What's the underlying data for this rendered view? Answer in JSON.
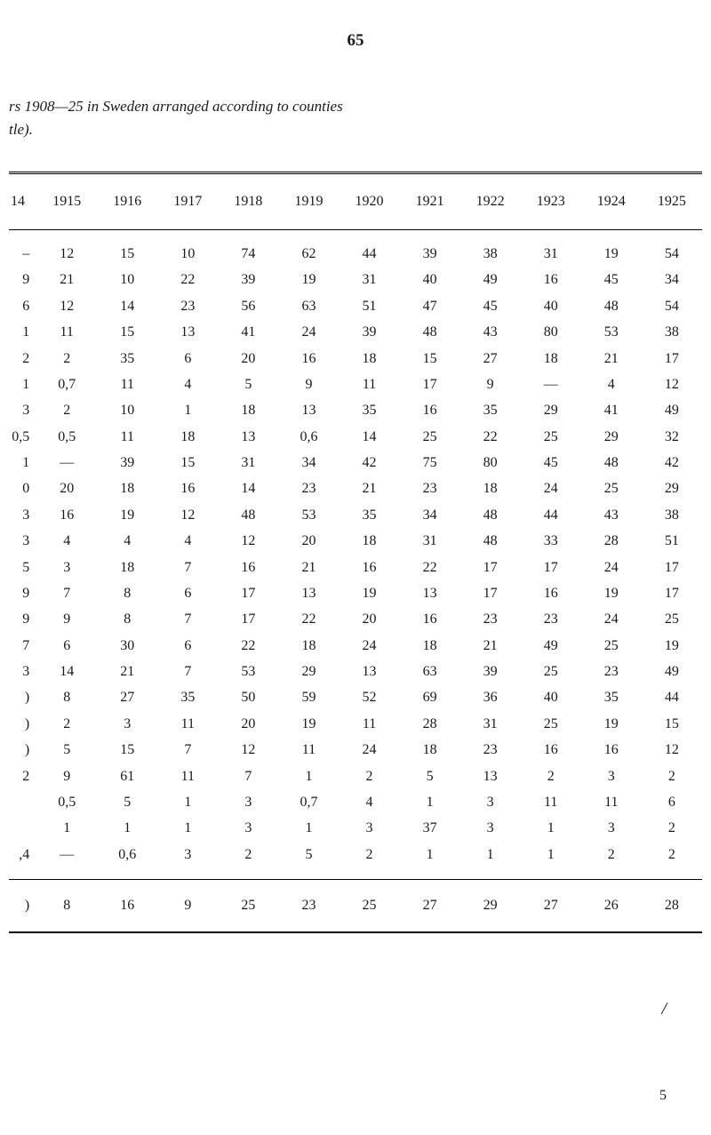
{
  "page_number": "65",
  "title": {
    "line1": "rs 1908—25 in Sweden arranged according to counties",
    "line2": "tle)."
  },
  "table": {
    "headers": [
      "14",
      "1915",
      "1916",
      "1917",
      "1918",
      "1919",
      "1920",
      "1921",
      "1922",
      "1923",
      "1924",
      "1925"
    ],
    "rows": [
      [
        "–",
        "12",
        "15",
        "10",
        "74",
        "62",
        "44",
        "39",
        "38",
        "31",
        "19",
        "54"
      ],
      [
        "9",
        "21",
        "10",
        "22",
        "39",
        "19",
        "31",
        "40",
        "49",
        "16",
        "45",
        "34"
      ],
      [
        "6",
        "12",
        "14",
        "23",
        "56",
        "63",
        "51",
        "47",
        "45",
        "40",
        "48",
        "54"
      ],
      [
        "1",
        "11",
        "15",
        "13",
        "41",
        "24",
        "39",
        "48",
        "43",
        "80",
        "53",
        "38"
      ],
      [
        "2",
        "2",
        "35",
        "6",
        "20",
        "16",
        "18",
        "15",
        "27",
        "18",
        "21",
        "17"
      ],
      [
        "1",
        "0,7",
        "11",
        "4",
        "5",
        "9",
        "11",
        "17",
        "9",
        "—",
        "4",
        "12"
      ],
      [
        "3",
        "2",
        "10",
        "1",
        "18",
        "13",
        "35",
        "16",
        "35",
        "29",
        "41",
        "49"
      ],
      [
        "0,5",
        "0,5",
        "11",
        "18",
        "13",
        "0,6",
        "14",
        "25",
        "22",
        "25",
        "29",
        "32"
      ],
      [
        "1",
        "—",
        "39",
        "15",
        "31",
        "34",
        "42",
        "75",
        "80",
        "45",
        "48",
        "42"
      ],
      [
        "0",
        "20",
        "18",
        "16",
        "14",
        "23",
        "21",
        "23",
        "18",
        "24",
        "25",
        "29"
      ],
      [
        "3",
        "16",
        "19",
        "12",
        "48",
        "53",
        "35",
        "34",
        "48",
        "44",
        "43",
        "38"
      ],
      [
        "3",
        "4",
        "4",
        "4",
        "12",
        "20",
        "18",
        "31",
        "48",
        "33",
        "28",
        "51"
      ],
      [
        "5",
        "3",
        "18",
        "7",
        "16",
        "21",
        "16",
        "22",
        "17",
        "17",
        "24",
        "17"
      ],
      [
        "9",
        "7",
        "8",
        "6",
        "17",
        "13",
        "19",
        "13",
        "17",
        "16",
        "19",
        "17"
      ],
      [
        "9",
        "9",
        "8",
        "7",
        "17",
        "22",
        "20",
        "16",
        "23",
        "23",
        "24",
        "25"
      ],
      [
        "7",
        "6",
        "30",
        "6",
        "22",
        "18",
        "24",
        "18",
        "21",
        "49",
        "25",
        "19"
      ],
      [
        "3",
        "14",
        "21",
        "7",
        "53",
        "29",
        "13",
        "63",
        "39",
        "25",
        "23",
        "49"
      ],
      [
        ")",
        "8",
        "27",
        "35",
        "50",
        "59",
        "52",
        "69",
        "36",
        "40",
        "35",
        "44"
      ],
      [
        ")",
        "2",
        "3",
        "11",
        "20",
        "19",
        "11",
        "28",
        "31",
        "25",
        "19",
        "15"
      ],
      [
        ")",
        "5",
        "15",
        "7",
        "12",
        "11",
        "24",
        "18",
        "23",
        "16",
        "16",
        "12"
      ],
      [
        "2",
        "9",
        "61",
        "11",
        "7",
        "1",
        "2",
        "5",
        "13",
        "2",
        "3",
        "2"
      ],
      [
        "",
        "0,5",
        "5",
        "1",
        "3",
        "0,7",
        "4",
        "1",
        "3",
        "11",
        "11",
        "6"
      ],
      [
        "",
        "1",
        "1",
        "1",
        "3",
        "1",
        "3",
        "37",
        "3",
        "1",
        "3",
        "2"
      ],
      [
        ",4",
        "—",
        "0,6",
        "3",
        "2",
        "5",
        "2",
        "1",
        "1",
        "1",
        "2",
        "2"
      ]
    ],
    "footer": [
      ")",
      "8",
      "16",
      "9",
      "25",
      "23",
      "25",
      "27",
      "29",
      "27",
      "26",
      "28"
    ]
  },
  "bottom_marker": "5",
  "slash_marker": "/"
}
